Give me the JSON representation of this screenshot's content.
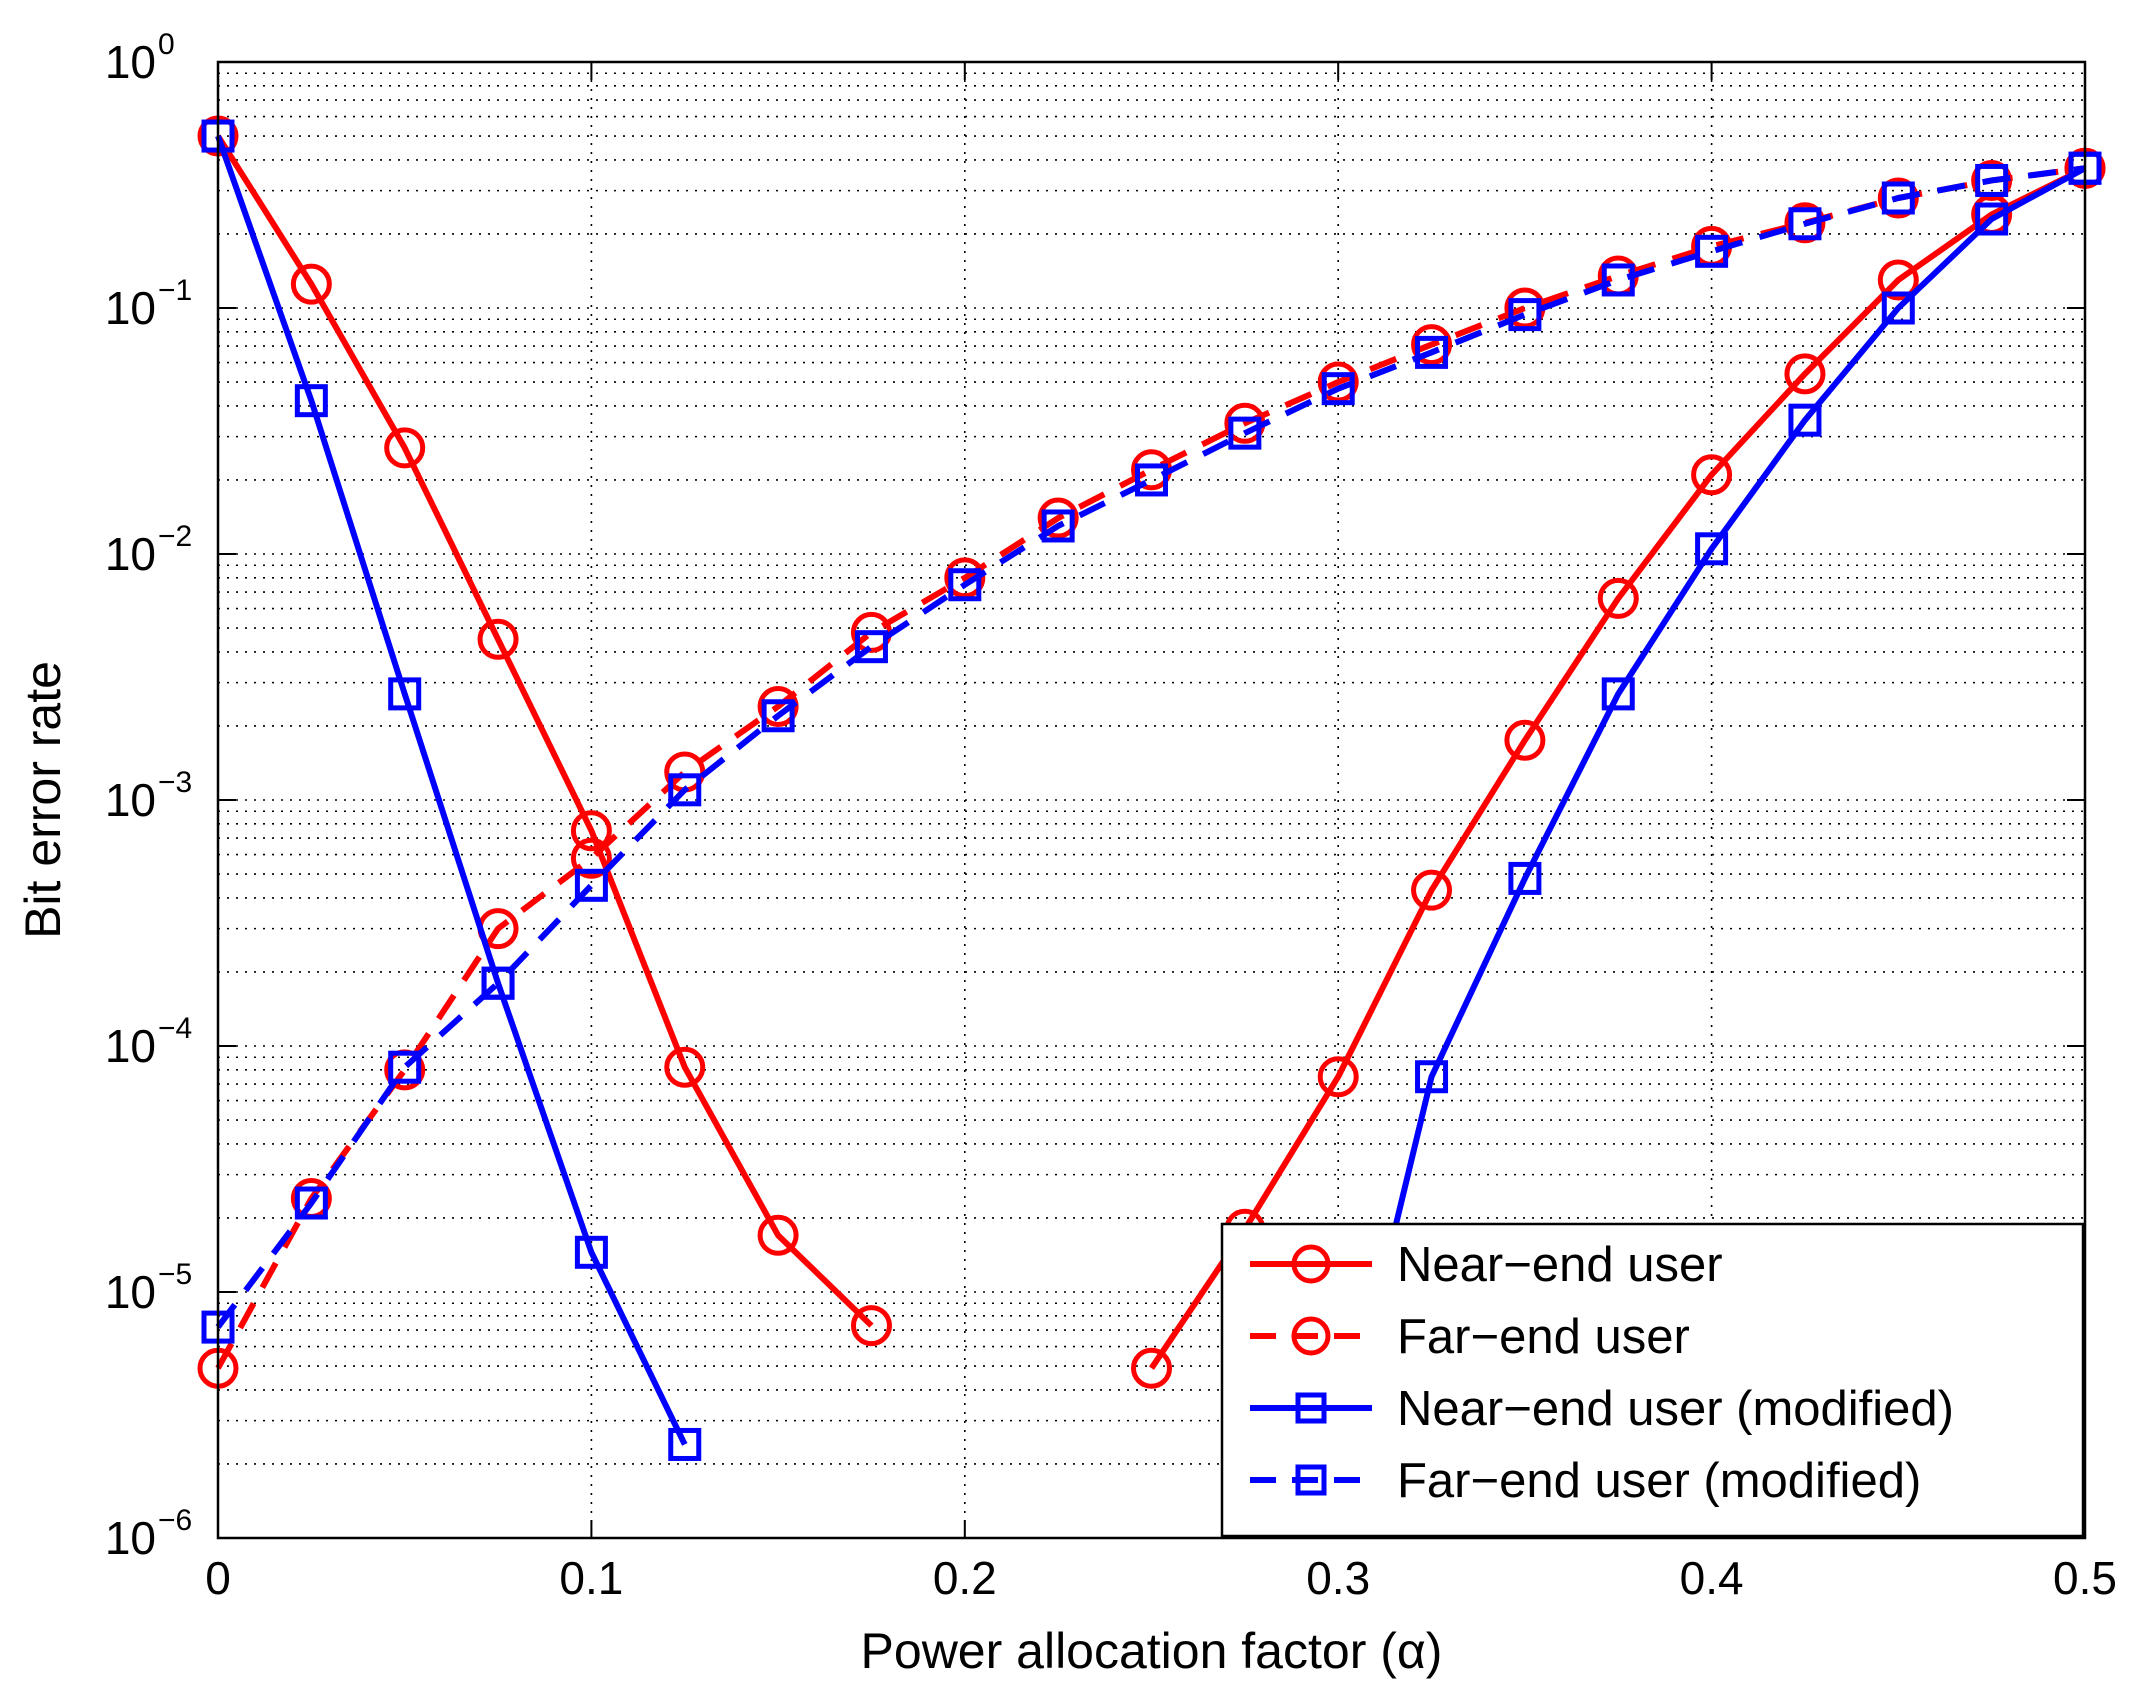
{
  "chart_data": {
    "type": "line",
    "title": "",
    "xlabel": "Power allocation factor (α)",
    "ylabel": "Bit error rate",
    "xlim": [
      0,
      0.5
    ],
    "ylim": [
      1e-06,
      1
    ],
    "yscale": "log",
    "grid": true,
    "legend_position": "bottom-right",
    "x_ticks": [
      0,
      0.1,
      0.2,
      0.3,
      0.4,
      0.5
    ],
    "x_tick_labels": [
      "0",
      "0.1",
      "0.2",
      "0.3",
      "0.4",
      "0.5"
    ],
    "y_ticks": [
      1e-06,
      1e-05,
      0.0001,
      0.001,
      0.01,
      0.1,
      1
    ],
    "y_tick_labels": [
      {
        "base": "10",
        "exp": "−6"
      },
      {
        "base": "10",
        "exp": "−5"
      },
      {
        "base": "10",
        "exp": "−4"
      },
      {
        "base": "10",
        "exp": "−3"
      },
      {
        "base": "10",
        "exp": "−2"
      },
      {
        "base": "10",
        "exp": "−1"
      },
      {
        "base": "10",
        "exp": "0"
      }
    ],
    "series": [
      {
        "name": "Near−end user",
        "color": "#ff0000",
        "line_style": "solid",
        "marker": "circle",
        "segments": [
          {
            "x": [
              0,
              0.025,
              0.05,
              0.075,
              0.1,
              0.125,
              0.15,
              0.175
            ],
            "y": [
              0.5,
              0.125,
              0.027,
              0.0045,
              0.00075,
              8.2e-05,
              1.7e-05,
              7.3e-06
            ]
          },
          {
            "x": [
              0.25,
              0.275,
              0.3,
              0.325,
              0.35,
              0.375,
              0.4,
              0.425,
              0.45,
              0.475,
              0.5
            ],
            "y": [
              4.9e-06,
              1.8e-05,
              7.5e-05,
              0.00043,
              0.00175,
              0.0066,
              0.021,
              0.054,
              0.13,
              0.24,
              0.37
            ]
          }
        ]
      },
      {
        "name": "Far−end user",
        "color": "#ff0000",
        "line_style": "dashed",
        "marker": "circle",
        "segments": [
          {
            "x": [
              0,
              0.025,
              0.05,
              0.075,
              0.1,
              0.125,
              0.15,
              0.175,
              0.2,
              0.225,
              0.25,
              0.275,
              0.3,
              0.325,
              0.35,
              0.375,
              0.4,
              0.425,
              0.45,
              0.475,
              0.5
            ],
            "y": [
              4.9e-06,
              2.4e-05,
              8e-05,
              0.0003,
              0.00058,
              0.0013,
              0.0024,
              0.0048,
              0.008,
              0.014,
              0.022,
              0.034,
              0.05,
              0.071,
              0.1,
              0.135,
              0.178,
              0.222,
              0.28,
              0.33,
              0.37
            ]
          }
        ]
      },
      {
        "name": "Near−end user (modified)",
        "color": "#0000ff",
        "line_style": "solid",
        "marker": "square",
        "segments": [
          {
            "x": [
              0,
              0.025,
              0.05,
              0.075,
              0.1,
              0.125
            ],
            "y": [
              0.5,
              0.042,
              0.0027,
              0.00018,
              1.45e-05,
              2.4e-06
            ]
          },
          {
            "x": [
              0.3,
              0.325,
              0.35,
              0.375,
              0.4,
              0.425,
              0.45,
              0.475,
              0.5
            ],
            "y": [
              2e-06,
              7.5e-05,
              0.00048,
              0.0027,
              0.0105,
              0.035,
              0.1,
              0.23,
              0.37
            ]
          }
        ]
      },
      {
        "name": "Far−end user (modified)",
        "color": "#0000ff",
        "line_style": "dashed",
        "marker": "square",
        "segments": [
          {
            "x": [
              0,
              0.025,
              0.05,
              0.075,
              0.1,
              0.125,
              0.15,
              0.175,
              0.2,
              0.225,
              0.25,
              0.275,
              0.3,
              0.325,
              0.35,
              0.375,
              0.4,
              0.425,
              0.45,
              0.475,
              0.5
            ],
            "y": [
              7.2e-06,
              2.3e-05,
              8.2e-05,
              0.00018,
              0.00045,
              0.0011,
              0.0022,
              0.0042,
              0.0075,
              0.013,
              0.02,
              0.031,
              0.047,
              0.066,
              0.094,
              0.13,
              0.17,
              0.22,
              0.28,
              0.33,
              0.37
            ]
          }
        ]
      }
    ]
  }
}
